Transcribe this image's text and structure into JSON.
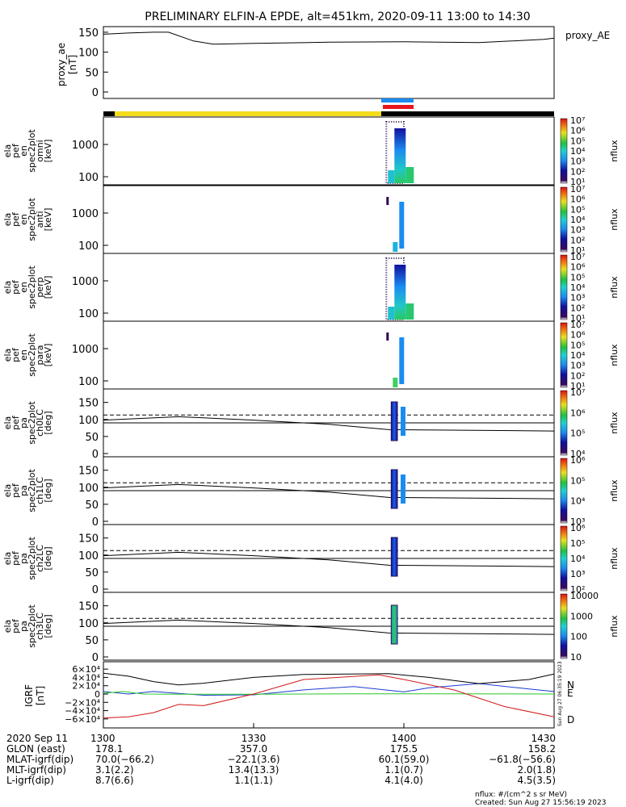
{
  "title": "PRELIMINARY ELFIN-A EPDE, alt=451km, 2020-09-11 13:00 to 14:30",
  "colors": {
    "yellow_bar": "#f2dc1c",
    "blue_bar": "#1a8cf0",
    "red_bar": "#e8141c",
    "black_bar": "#000000",
    "trace_black": "#000000",
    "trace_blue": "#1a3cd0",
    "trace_green": "#28c828",
    "trace_red": "#d01818"
  },
  "chart_data": [
    {
      "type": "line",
      "name": "proxy_ae",
      "ylabel": "proxy_ae\n[nT]",
      "legend": "proxy_AE",
      "ylim": [
        0,
        160
      ],
      "yticks": [
        "0",
        "50",
        "100",
        "150"
      ],
      "x": [
        0,
        5,
        10,
        13,
        18,
        22,
        30,
        45,
        60,
        75,
        88,
        90
      ],
      "y": [
        145,
        148,
        150,
        150,
        128,
        120,
        122,
        125,
        126,
        124,
        132,
        135
      ]
    },
    {
      "type": "heatmap",
      "name": "spec-omni",
      "ylabel": "ela\npef\nen\nspec2plot\nomni\n[keV]",
      "yticks": [
        "100",
        "1000"
      ],
      "cbar_ticks": [
        "10¹",
        "10²",
        "10³",
        "10⁴",
        "10⁵",
        "10⁶",
        "10⁷"
      ],
      "cbar_label": "nflux",
      "data_window_min": [
        57,
        60
      ]
    },
    {
      "type": "heatmap",
      "name": "spec-anti",
      "ylabel": "ela\npef\nen\nspec2plot\nanti\n[keV]",
      "yticks": [
        "100",
        "1000"
      ],
      "cbar_ticks": [
        "10¹",
        "10²",
        "10³",
        "10⁴",
        "10⁵",
        "10⁶",
        "10⁷"
      ],
      "cbar_label": "nflux",
      "data_window_min": [
        57,
        60
      ]
    },
    {
      "type": "heatmap",
      "name": "spec-perp",
      "ylabel": "ela\npef\nen\nspec2plot\nperp\n[keV]",
      "yticks": [
        "100",
        "1000"
      ],
      "cbar_ticks": [
        "10¹",
        "10²",
        "10³",
        "10⁴",
        "10⁵",
        "10⁶",
        "10⁷"
      ],
      "cbar_label": "nflux",
      "data_window_min": [
        57,
        60
      ]
    },
    {
      "type": "heatmap",
      "name": "spec-para",
      "ylabel": "ela\npef\nen\nspec2plot\npara\n[keV]",
      "yticks": [
        "100",
        "1000"
      ],
      "cbar_ticks": [
        "10¹",
        "10²",
        "10³",
        "10⁴",
        "10⁵",
        "10⁶",
        "10⁷"
      ],
      "cbar_label": "nflux",
      "data_window_min": [
        57,
        60
      ]
    },
    {
      "type": "heatmap",
      "name": "pa-ch0",
      "ylabel": "ela\npef\npa\nspec2plot\nch0LC\n[deg]",
      "yticks": [
        "0",
        "50",
        "100",
        "150"
      ],
      "cbar_ticks": [
        "10⁴",
        "10⁵",
        "10⁶",
        "10⁷"
      ],
      "cbar_label": "nflux"
    },
    {
      "type": "heatmap",
      "name": "pa-ch1",
      "ylabel": "ela\npef\npa\nspec2plot\nch1LC\n[deg]",
      "yticks": [
        "0",
        "50",
        "100",
        "150"
      ],
      "cbar_ticks": [
        "10³",
        "10⁴",
        "10⁵",
        "10⁶"
      ],
      "cbar_label": "nflux"
    },
    {
      "type": "heatmap",
      "name": "pa-ch2",
      "ylabel": "ela\npef\npa\nspec2plot\nch2LC\n[deg]",
      "yticks": [
        "0",
        "50",
        "100",
        "150"
      ],
      "cbar_ticks": [
        "10²",
        "10³",
        "10⁴",
        "10⁵",
        "10⁶"
      ],
      "cbar_label": "nflux"
    },
    {
      "type": "heatmap",
      "name": "pa-ch3",
      "ylabel": "ela\npef\npa\nspec2plot\nch3LC\n[deg]",
      "yticks": [
        "0",
        "50",
        "100",
        "150"
      ],
      "cbar_ticks": [
        "10",
        "100",
        "1000",
        "10000"
      ],
      "cbar_label": "nflux"
    },
    {
      "type": "line",
      "name": "igrf",
      "ylabel": "IGRF\n[nT]",
      "ylim": [
        -70000,
        70000
      ],
      "yticks": [
        "−6×10⁴",
        "−4×10⁴",
        "−2×10⁴",
        "0",
        "2×10⁴",
        "4×10⁴",
        "6×10⁴"
      ],
      "series": [
        {
          "name": "N",
          "x": [
            0,
            5,
            10,
            20,
            30,
            40,
            50,
            60,
            65,
            75,
            85,
            90
          ],
          "y": [
            6000,
            0,
            6000,
            -3000,
            -2000,
            10000,
            18000,
            5000,
            15000,
            25000,
            12000,
            6000
          ]
        },
        {
          "name": "E",
          "x": [
            0,
            4,
            8,
            15,
            30,
            50,
            70,
            90
          ],
          "y": [
            2000,
            6000,
            0,
            -500,
            -500,
            500,
            500,
            0
          ]
        },
        {
          "name": "D",
          "x": [
            0,
            5,
            10,
            15,
            20,
            30,
            40,
            55,
            60,
            70,
            80,
            90
          ],
          "y": [
            -58000,
            -55000,
            -45000,
            -25000,
            -28000,
            0,
            35000,
            46000,
            35000,
            10000,
            -30000,
            -55000
          ]
        },
        {
          "x": [
            0,
            5,
            10,
            15,
            20,
            30,
            40,
            57,
            65,
            75,
            85,
            90
          ],
          "y": [
            50000,
            43000,
            30000,
            22000,
            26000,
            40000,
            47000,
            49000,
            40000,
            25000,
            35000,
            48000
          ]
        }
      ]
    }
  ],
  "x_axis": {
    "ticks": [
      "1300",
      "1330",
      "1400",
      "1430"
    ],
    "rows": [
      {
        "label": "2020 Sep 11",
        "values": [
          "1300",
          "1330",
          "1400",
          "1430"
        ]
      },
      {
        "label": "GLON (east)",
        "values": [
          "178.1",
          "357.0",
          "175.5",
          "158.2"
        ]
      },
      {
        "label": "MLAT-igrf(dip)",
        "values": [
          "70.0(−66.2)",
          "−22.1(3.6)",
          "60.1(59.0)",
          "−61.8(−56.6)"
        ]
      },
      {
        "label": "MLT-igrf(dip)",
        "values": [
          "3.1(2.2)",
          "13.4(13.3)",
          "1.1(0.7)",
          "2.0(1.8)"
        ]
      },
      {
        "label": "L-igrf(dip)",
        "values": [
          "8.7(6.6)",
          "1.1(1.1)",
          "4.1(4.0)",
          "4.5(3.5)"
        ]
      }
    ]
  },
  "footer": {
    "units": "nflux: #/(cm^2 s sr MeV)",
    "created": "Created: Sun Aug 27 15:56:19 2023",
    "sidestamp": "Sun Aug 27 06:35:19 2023"
  }
}
